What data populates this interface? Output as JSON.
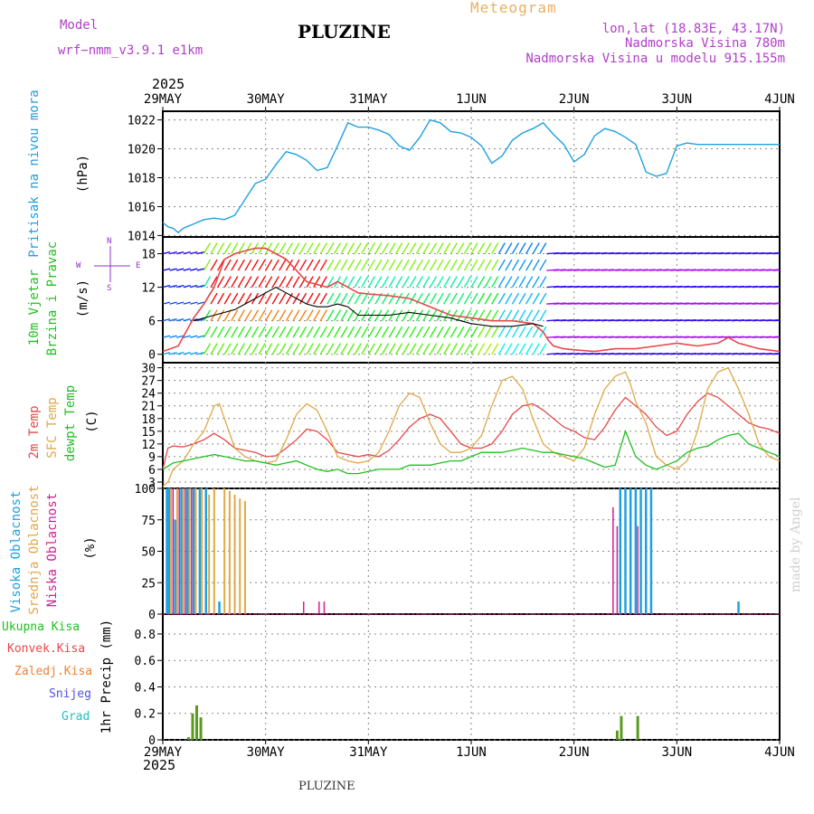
{
  "header": {
    "model_label": "Model",
    "model_name": "wrf−nmm_v3.9.1  e1km",
    "title": "PLUZINE",
    "meteogram": "Meteogram",
    "lonlat": "lon,lat (18.83E, 43.17N)",
    "altitude": "Nadmorska Visina 780m",
    "model_altitude": "Nadmorska Visina u modelu 915.155m",
    "year_top": "2025",
    "year_bottom": "2025",
    "footer": "PLUZINE",
    "watermark": "made by Angel"
  },
  "colors": {
    "pressure": "#1ea0e0",
    "temp2m": "#e84848",
    "sfc": "#e0a848",
    "dewpt": "#20c020",
    "high_cloud": "#1ea0e0",
    "mid_cloud": "#e0a848",
    "low_cloud": "#d02090",
    "total_precip": "#20c020",
    "conv_precip": "#e84848",
    "frozen_precip": "#f08030",
    "snow": "#5050e0",
    "graupel": "#20c0c0",
    "violet": "#9030c8",
    "precip_bar": "#5a9a20"
  },
  "chart_data": [
    {
      "name": "pressure",
      "type": "line",
      "ylabel_blue": "Pritisak na nivou mora",
      "ylabel_black": "(hPa)",
      "x_dates": [
        "29MAY",
        "30MAY",
        "31MAY",
        "1JUN",
        "2JUN",
        "3JUN",
        "4JUN"
      ],
      "yticks": [
        1014,
        1016,
        1018,
        1020,
        1022
      ],
      "ylim": [
        1013.9,
        1022.6
      ],
      "series": [
        {
          "x": [
            0,
            0.05,
            0.1,
            0.15,
            0.2,
            0.3,
            0.4,
            0.5,
            0.6,
            0.7,
            0.8,
            0.9,
            1.0,
            1.1,
            1.2,
            1.3,
            1.4,
            1.5,
            1.6,
            1.7,
            1.8,
            1.9,
            2.0,
            2.1,
            2.2,
            2.3,
            2.4,
            2.5,
            2.6,
            2.7,
            2.8,
            2.9,
            3.0,
            3.1,
            3.2,
            3.3,
            3.4,
            3.5,
            3.6,
            3.7,
            3.8,
            3.9,
            4.0,
            4.1,
            4.2,
            4.3,
            4.4,
            4.5,
            4.6,
            4.7,
            4.8,
            4.9,
            5.0,
            5.1,
            5.2,
            5.3,
            5.4,
            5.5,
            5.6,
            5.7,
            5.8,
            5.9,
            6.0
          ],
          "y": [
            1014.9,
            1014.6,
            1014.5,
            1014.2,
            1014.5,
            1014.8,
            1015.1,
            1015.2,
            1015.1,
            1015.4,
            1016.5,
            1017.6,
            1017.9,
            1018.9,
            1019.8,
            1019.6,
            1019.2,
            1018.5,
            1018.7,
            1020.2,
            1021.8,
            1021.5,
            1021.5,
            1021.3,
            1021.0,
            1020.2,
            1019.9,
            1020.8,
            1022.0,
            1021.8,
            1021.2,
            1021.1,
            1020.8,
            1020.2,
            1019.0,
            1019.5,
            1020.6,
            1021.1,
            1021.4,
            1021.8,
            1021.0,
            1020.3,
            1019.1,
            1019.6,
            1020.9,
            1021.4,
            1021.2,
            1020.8,
            1020.3,
            1018.4,
            1018.1,
            1018.3,
            1020.2,
            1020.4,
            1020.3,
            1020.3,
            1020.3,
            1020.3,
            1020.3,
            1020.3,
            1020.3,
            1020.3,
            1020.3
          ]
        }
      ]
    },
    {
      "name": "wind",
      "type": "line",
      "ylabel_green": "10m Vjetar",
      "ylabel_green2": "Brzina i Pravac",
      "ylabel_black": "(m/s)",
      "compass_n": "N",
      "compass_w": "W",
      "compass_e": "E",
      "compass_s": "S",
      "yticks": [
        0,
        6,
        12,
        18
      ],
      "ylim": [
        -1.5,
        21.0
      ],
      "speed_gust": {
        "x": [
          0,
          0.15,
          0.3,
          0.4,
          0.5,
          0.6,
          0.7,
          0.8,
          0.9,
          1.0,
          1.1,
          1.2,
          1.3,
          1.4,
          1.5,
          1.6,
          1.7,
          1.8,
          1.9,
          2.0,
          2.2,
          2.4,
          2.6,
          2.8,
          3.0,
          3.2,
          3.4,
          3.6,
          3.7,
          3.75,
          3.8,
          3.9,
          4.0,
          4.2,
          4.4,
          4.6,
          4.8,
          5.0,
          5.2,
          5.4,
          5.5,
          5.6,
          5.8,
          6.0
        ],
        "y": [
          0.5,
          1.5,
          6.5,
          9,
          12,
          17,
          18,
          18.5,
          19,
          19,
          18,
          17,
          15,
          13,
          12.5,
          12,
          13,
          12,
          11,
          10.8,
          10.5,
          10,
          8.5,
          7,
          6.5,
          6,
          6,
          5.5,
          4,
          2.5,
          1.5,
          1,
          0.8,
          0.5,
          1,
          1,
          1.5,
          2,
          1.5,
          2,
          3,
          2,
          1,
          0.5
        ]
      },
      "speed_mean": {
        "x": [
          0.3,
          0.5,
          0.7,
          0.9,
          1.0,
          1.1,
          1.2,
          1.3,
          1.4,
          1.5,
          1.6,
          1.7,
          1.8,
          1.9,
          2.0,
          2.2,
          2.4,
          2.6,
          2.8,
          3.0,
          3.2,
          3.4,
          3.6,
          3.7
        ],
        "y": [
          6,
          7,
          8,
          10,
          11,
          12,
          11,
          10,
          9,
          8.5,
          8.5,
          9,
          8.5,
          7,
          7,
          7,
          7.5,
          7,
          6.5,
          5.5,
          5,
          5,
          5.5,
          5
        ]
      }
    },
    {
      "name": "temperature",
      "type": "line",
      "ylabel_red": "2m Temp",
      "ylabel_orange": "SFC Temp",
      "ylabel_green": "dewpt Temp",
      "ylabel_black": "(C)",
      "yticks": [
        3,
        6,
        9,
        12,
        15,
        18,
        21,
        24,
        27,
        30
      ],
      "ylim": [
        1.5,
        31.2
      ],
      "series": [
        {
          "name": "2m",
          "x": [
            0,
            0.05,
            0.1,
            0.2,
            0.3,
            0.4,
            0.5,
            0.6,
            0.7,
            0.8,
            0.9,
            1.0,
            1.1,
            1.2,
            1.3,
            1.4,
            1.5,
            1.6,
            1.7,
            1.8,
            1.9,
            2.0,
            2.1,
            2.2,
            2.3,
            2.4,
            2.5,
            2.6,
            2.7,
            2.8,
            2.9,
            3.0,
            3.1,
            3.2,
            3.3,
            3.4,
            3.5,
            3.6,
            3.7,
            3.8,
            3.9,
            4.0,
            4.1,
            4.2,
            4.3,
            4.4,
            4.5,
            4.6,
            4.7,
            4.8,
            4.9,
            5.0,
            5.1,
            5.2,
            5.3,
            5.4,
            5.5,
            5.6,
            5.7,
            5.8,
            5.9,
            6.0
          ],
          "y": [
            6,
            11,
            11.5,
            11.3,
            12,
            13,
            14.5,
            13,
            11,
            10.5,
            10,
            9,
            9.2,
            11,
            13,
            15.5,
            15,
            13,
            10,
            9.5,
            9,
            9.5,
            9,
            10.5,
            13,
            16,
            18,
            19,
            18,
            15,
            12,
            11,
            11,
            12,
            15,
            19,
            21,
            21.5,
            20,
            18,
            16,
            15,
            13.5,
            13,
            16,
            20,
            23,
            21,
            19,
            16,
            14,
            15,
            19,
            22,
            24,
            23,
            21,
            19,
            17,
            16,
            15.5,
            14.5
          ]
        },
        {
          "name": "sfc",
          "x": [
            0,
            0.05,
            0.1,
            0.2,
            0.3,
            0.4,
            0.5,
            0.55,
            0.6,
            0.7,
            0.8,
            0.9,
            1.0,
            1.1,
            1.2,
            1.3,
            1.4,
            1.5,
            1.6,
            1.7,
            1.8,
            1.9,
            2.0,
            2.1,
            2.2,
            2.3,
            2.4,
            2.5,
            2.6,
            2.7,
            2.8,
            2.9,
            3.0,
            3.1,
            3.2,
            3.3,
            3.4,
            3.5,
            3.6,
            3.7,
            3.8,
            3.9,
            4.0,
            4.1,
            4.2,
            4.3,
            4.4,
            4.5,
            4.55,
            4.6,
            4.7,
            4.8,
            4.9,
            5.0,
            5.1,
            5.2,
            5.3,
            5.4,
            5.5,
            5.6,
            5.7,
            5.8,
            5.9,
            6.0
          ],
          "y": [
            2,
            3,
            6,
            8,
            12,
            15,
            21,
            21.5,
            18,
            11,
            9,
            8,
            7.5,
            8,
            13,
            19,
            21.5,
            20,
            15,
            9,
            8,
            7.5,
            8,
            10,
            15,
            21,
            24,
            23,
            17,
            12,
            10,
            10,
            11,
            14,
            21,
            27,
            28,
            25,
            18,
            12,
            10,
            9,
            8,
            11,
            19,
            25,
            28,
            29,
            26,
            22,
            17,
            9,
            7,
            6,
            8,
            15,
            25,
            29,
            30,
            25,
            19,
            12,
            9,
            8
          ]
        },
        {
          "name": "dewpt",
          "x": [
            0,
            0.1,
            0.2,
            0.3,
            0.4,
            0.5,
            0.6,
            0.7,
            0.8,
            0.9,
            1.0,
            1.1,
            1.2,
            1.3,
            1.4,
            1.5,
            1.6,
            1.7,
            1.8,
            1.9,
            2.0,
            2.1,
            2.2,
            2.3,
            2.4,
            2.5,
            2.6,
            2.7,
            2.8,
            2.9,
            3.0,
            3.1,
            3.2,
            3.3,
            3.4,
            3.5,
            3.6,
            3.7,
            3.8,
            3.9,
            4.0,
            4.1,
            4.2,
            4.3,
            4.4,
            4.5,
            4.6,
            4.7,
            4.8,
            4.9,
            5.0,
            5.1,
            5.2,
            5.3,
            5.4,
            5.5,
            5.6,
            5.7,
            5.8,
            5.9,
            6.0
          ],
          "y": [
            6,
            7.5,
            8,
            8.5,
            9,
            9.5,
            9,
            8.5,
            8,
            8,
            7.5,
            7,
            7.5,
            8,
            7,
            6,
            5.5,
            6,
            5,
            5,
            5.5,
            6,
            6,
            6,
            7,
            7,
            7,
            7.5,
            8,
            8,
            9,
            10,
            10,
            10,
            10.5,
            11,
            10.5,
            10,
            10,
            9.5,
            9,
            8.5,
            7.5,
            6.5,
            7,
            15,
            9,
            7,
            6,
            7,
            8,
            10,
            11,
            11.5,
            13,
            14,
            14.5,
            12,
            11,
            10,
            9
          ]
        }
      ]
    },
    {
      "name": "cloud",
      "type": "bar",
      "ylabel_blue": "Visoka Oblacnost",
      "ylabel_orange": "Srednja Oblacnost",
      "ylabel_pink": "Niska Oblacnost",
      "ylabel_black": "(%)",
      "yticks": [
        0,
        25,
        50,
        75,
        100
      ],
      "ylim": [
        0,
        100
      ],
      "high": {
        "x": [
          0.04,
          0.06,
          0.12,
          0.18,
          0.24,
          0.3,
          0.36,
          0.42,
          0.55,
          4.45,
          4.5,
          4.55,
          4.6,
          4.65,
          4.7,
          4.75,
          5.6
        ],
        "y": [
          100,
          100,
          75,
          100,
          100,
          100,
          100,
          100,
          10,
          100,
          100,
          100,
          100,
          100,
          100,
          100,
          10
        ]
      },
      "mid": {
        "x": [
          0.08,
          0.14,
          0.2,
          0.26,
          0.32,
          0.38,
          0.45,
          0.5,
          0.6,
          0.65,
          0.7,
          0.75,
          0.8
        ],
        "y": [
          100,
          100,
          100,
          100,
          100,
          100,
          95,
          100,
          100,
          98,
          95,
          92,
          90
        ]
      },
      "low": {
        "x": [
          0.1,
          0.16,
          0.22,
          0.28,
          1.37,
          1.52,
          1.57,
          4.38,
          4.42,
          4.62
        ],
        "y": [
          100,
          100,
          100,
          100,
          10,
          10,
          10,
          85,
          70,
          70
        ]
      }
    },
    {
      "name": "precipitation",
      "type": "bar",
      "label_total": "Ukupna Kisa",
      "label_conv": "Konvek.Kisa",
      "label_frozen": "Zaledj.Kisa",
      "label_snow": "Snijeg",
      "label_graupel": "Grad",
      "ylabel_black": "1hr Precip (mm)",
      "yticks": [
        0,
        0.2,
        0.4,
        0.6,
        0.8
      ],
      "ylim": [
        0,
        0.95
      ],
      "total": {
        "x": [
          0.25,
          0.29,
          0.33,
          0.37,
          4.42,
          4.46,
          4.62
        ],
        "y": [
          0.02,
          0.2,
          0.26,
          0.17,
          0.07,
          0.18,
          0.18
        ]
      }
    }
  ]
}
